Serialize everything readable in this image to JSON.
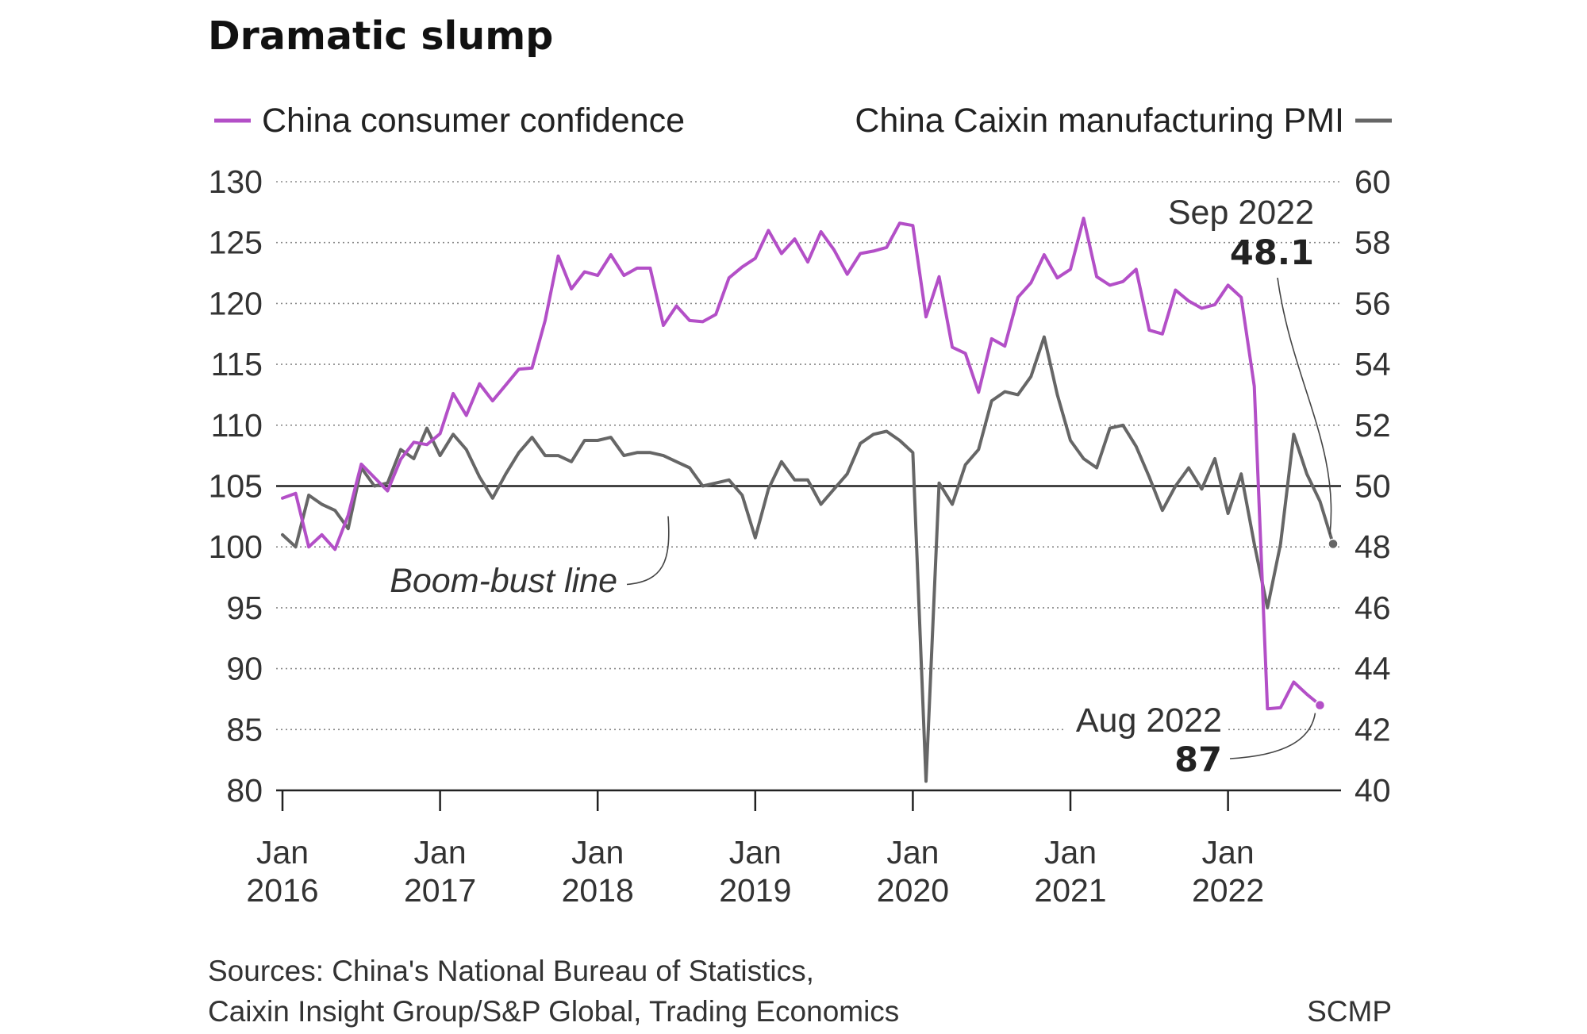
{
  "chart_data": {
    "type": "line",
    "title": "Dramatic slump",
    "x_tick_labels": [
      {
        "month": "Jan",
        "year": "2016"
      },
      {
        "month": "Jan",
        "year": "2017"
      },
      {
        "month": "Jan",
        "year": "2018"
      },
      {
        "month": "Jan",
        "year": "2019"
      },
      {
        "month": "Jan",
        "year": "2020"
      },
      {
        "month": "Jan",
        "year": "2021"
      },
      {
        "month": "Jan",
        "year": "2022"
      }
    ],
    "x_range": [
      "2016-01",
      "2022-09"
    ],
    "y_left": {
      "min": 80,
      "max": 130,
      "ticks": [
        "130",
        "125",
        "120",
        "115",
        "110",
        "105",
        "100",
        "95",
        "90",
        "85",
        "80"
      ]
    },
    "y_right": {
      "min": 40,
      "max": 60,
      "ticks": [
        "60",
        "58",
        "56",
        "54",
        "52",
        "50",
        "48",
        "46",
        "44",
        "42",
        "40"
      ]
    },
    "grid": true,
    "legend": {
      "placement": "top"
    },
    "reference_line": {
      "label": "Boom-bust line",
      "axis": "right",
      "value": 50
    },
    "series": [
      {
        "name": "China consumer confidence",
        "axis": "left",
        "color": "#b34fc7",
        "start": "2016-01",
        "values": [
          104,
          104.4,
          100,
          101,
          99.8,
          102.6,
          106.8,
          105.7,
          104.6,
          107.2,
          108.6,
          108.4,
          109.3,
          112.6,
          110.8,
          113.4,
          112,
          113.3,
          114.6,
          114.7,
          118.6,
          123.9,
          121.2,
          122.6,
          122.3,
          124,
          122.3,
          122.9,
          122.9,
          118.2,
          119.8,
          118.6,
          118.5,
          119.1,
          122.1,
          123,
          123.7,
          126,
          124.1,
          125.3,
          123.4,
          125.9,
          124.4,
          122.4,
          124.1,
          124.3,
          124.6,
          126.6,
          126.4,
          118.9,
          122.2,
          116.4,
          115.9,
          112.7,
          117.1,
          116.5,
          120.5,
          121.7,
          124,
          122.1,
          122.8,
          127,
          122.2,
          121.5,
          121.8,
          122.8,
          117.8,
          117.5,
          121.1,
          120.2,
          119.6,
          119.9,
          121.5,
          120.5,
          113.2,
          86.7,
          86.8,
          88.9,
          87.9,
          87
        ]
      },
      {
        "name": "China Caixin manufacturing PMI",
        "axis": "right",
        "color": "#666666",
        "start": "2016-01",
        "values": [
          48.4,
          48,
          49.7,
          49.4,
          49.2,
          48.6,
          50.6,
          50,
          50.1,
          51.2,
          50.9,
          51.9,
          51,
          51.7,
          51.2,
          50.3,
          49.6,
          50.4,
          51.1,
          51.6,
          51,
          51,
          50.8,
          51.5,
          51.5,
          51.6,
          51,
          51.1,
          51.1,
          51,
          50.8,
          50.6,
          50,
          50.1,
          50.2,
          49.7,
          48.3,
          49.9,
          50.8,
          50.2,
          50.2,
          49.4,
          49.9,
          50.4,
          51.4,
          51.7,
          51.8,
          51.5,
          51.1,
          40.3,
          50.1,
          49.4,
          50.7,
          51.2,
          52.8,
          53.1,
          53,
          53.6,
          54.9,
          53,
          51.5,
          50.9,
          50.6,
          51.9,
          52,
          51.3,
          50.3,
          49.2,
          50,
          50.6,
          49.9,
          50.9,
          49.1,
          50.4,
          48.1,
          46,
          48.1,
          51.7,
          50.4,
          49.5,
          48.1
        ]
      }
    ],
    "annotations": [
      {
        "label": "Sep 2022",
        "value": "48.1",
        "series": "China Caixin manufacturing PMI",
        "date": "2022-09"
      },
      {
        "label": "Aug 2022",
        "value": "87",
        "series": "China consumer confidence",
        "date": "2022-08"
      }
    ],
    "source_lines": [
      "Sources: China's National Bureau of Statistics,",
      "Caixin Insight Group/S&P Global, Trading Economics"
    ],
    "credit": "SCMP"
  }
}
